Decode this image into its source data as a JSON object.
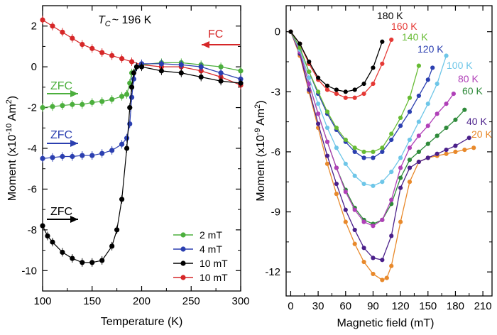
{
  "chart_data": [
    {
      "type": "scatter",
      "title": "T_C ~ 196 K",
      "title_parts": {
        "symbol": "T",
        "subscript": "C",
        "rest": "~ 196 K"
      },
      "xlabel": "Temperature (K)",
      "ylabel": "Moment (x10",
      "ylabel_exp": "-10",
      "ylabel_unit": " Am",
      "ylabel_unit_exp": "2",
      "ylabel_close": ")",
      "xlim": [
        100,
        300
      ],
      "ylim": [
        -11,
        3
      ],
      "xticks": [
        "100",
        "150",
        "200",
        "250",
        "300"
      ],
      "yticks": [
        "2",
        "0",
        "-2",
        "-4",
        "-6",
        "-8",
        "-10"
      ],
      "legend_position": "bottom-right",
      "annotations": [
        {
          "text": "FC",
          "color": "#d62728"
        },
        {
          "text": "ZFC",
          "color": "#4caf3d"
        },
        {
          "text": "ZFC",
          "color": "#2b3fb0"
        },
        {
          "text": "ZFC",
          "color": "#000000"
        }
      ],
      "series": [
        {
          "name": "2 mT",
          "color": "#4caf3d",
          "x": [
            100,
            110,
            120,
            130,
            140,
            150,
            160,
            170,
            180,
            185,
            188,
            190,
            195,
            200,
            220,
            240,
            260,
            280,
            300
          ],
          "y": [
            -2.0,
            -1.95,
            -1.9,
            -1.85,
            -1.85,
            -1.75,
            -1.7,
            -1.6,
            -1.45,
            -1.35,
            -0.8,
            -0.3,
            0.0,
            0.1,
            0.2,
            0.2,
            0.1,
            0.0,
            -0.2
          ]
        },
        {
          "name": "4 mT",
          "color": "#2b3fb0",
          "x": [
            100,
            110,
            120,
            130,
            140,
            150,
            160,
            170,
            180,
            185,
            188,
            190,
            192,
            195,
            200,
            220,
            240,
            260,
            280,
            300
          ],
          "y": [
            -4.5,
            -4.45,
            -4.4,
            -4.4,
            -4.35,
            -4.35,
            -4.25,
            -4.1,
            -3.8,
            -3.5,
            -2.8,
            -1.5,
            -0.6,
            0.0,
            0.15,
            0.15,
            0.1,
            0.0,
            -0.3,
            -0.6
          ]
        },
        {
          "name": "10 mT",
          "color": "#000000",
          "x": [
            100,
            105,
            110,
            120,
            130,
            140,
            150,
            160,
            170,
            175,
            180,
            185,
            188,
            190,
            192,
            195,
            200,
            220,
            240,
            260,
            280,
            300
          ],
          "y": [
            -7.8,
            -8.3,
            -8.6,
            -9.1,
            -9.4,
            -9.6,
            -9.6,
            -9.5,
            -8.8,
            -8.0,
            -6.5,
            -4.0,
            -2.0,
            -1.0,
            -0.3,
            0.0,
            0.0,
            -0.2,
            -0.3,
            -0.5,
            -0.7,
            -0.8
          ]
        },
        {
          "name": "10 mT",
          "color": "#d62728",
          "x": [
            100,
            110,
            120,
            130,
            140,
            150,
            160,
            170,
            180,
            190,
            200,
            220,
            240,
            260,
            280,
            300
          ],
          "y": [
            2.3,
            2.0,
            1.7,
            1.4,
            1.1,
            0.9,
            0.7,
            0.55,
            0.4,
            0.25,
            0.1,
            0.0,
            0.0,
            -0.2,
            -0.5,
            -0.9
          ]
        }
      ]
    },
    {
      "type": "line",
      "xlabel": "Magnetic field (mT)",
      "ylabel": "Moment (x10",
      "ylabel_exp": "-9",
      "ylabel_unit": " Am",
      "ylabel_unit_exp": "2",
      "ylabel_close": ")",
      "xlim": [
        -5,
        220
      ],
      "ylim": [
        -13.2,
        1.3
      ],
      "xticks": [
        "0",
        "30",
        "60",
        "90",
        "120",
        "150",
        "180",
        "210"
      ],
      "yticks": [
        "0",
        "-3",
        "-6",
        "-9",
        "-12"
      ],
      "series": [
        {
          "name": "180 K",
          "color": "#000000",
          "x": [
            0,
            10,
            20,
            30,
            40,
            50,
            60,
            70,
            80,
            90,
            100
          ],
          "y": [
            0,
            -0.6,
            -1.5,
            -2.3,
            -2.7,
            -2.9,
            -3.0,
            -2.9,
            -2.6,
            -1.8,
            -0.5
          ]
        },
        {
          "name": "160 K",
          "color": "#e53935",
          "x": [
            0,
            10,
            20,
            30,
            40,
            50,
            60,
            70,
            80,
            90,
            100,
            110
          ],
          "y": [
            0,
            -0.6,
            -1.6,
            -2.4,
            -2.9,
            -3.1,
            -3.3,
            -3.3,
            -3.1,
            -2.6,
            -1.6,
            -0.4
          ]
        },
        {
          "name": "140 K",
          "color": "#66bb33",
          "x": [
            0,
            10,
            20,
            30,
            40,
            50,
            60,
            70,
            80,
            90,
            100,
            110,
            120,
            130,
            140
          ],
          "y": [
            0,
            -0.8,
            -2.0,
            -3.0,
            -4.0,
            -4.8,
            -5.4,
            -5.8,
            -6.0,
            -6.0,
            -5.8,
            -5.1,
            -4.3,
            -3.3,
            -1.7
          ]
        },
        {
          "name": "120 K",
          "color": "#2b3fb0",
          "x": [
            0,
            10,
            20,
            30,
            40,
            50,
            60,
            70,
            80,
            90,
            100,
            110,
            120,
            130,
            140,
            150,
            155
          ],
          "y": [
            0,
            -0.8,
            -2.0,
            -3.1,
            -4.1,
            -4.9,
            -5.5,
            -6.0,
            -6.3,
            -6.3,
            -6.0,
            -5.4,
            -4.7,
            -4.0,
            -3.2,
            -2.4,
            -1.8
          ]
        },
        {
          "name": "100 K",
          "color": "#6ec6e8",
          "x": [
            0,
            10,
            20,
            30,
            40,
            50,
            60,
            70,
            80,
            90,
            100,
            110,
            120,
            130,
            140,
            150,
            160,
            170
          ],
          "y": [
            0,
            -0.9,
            -2.3,
            -3.6,
            -4.8,
            -5.8,
            -6.6,
            -7.2,
            -7.6,
            -7.7,
            -7.5,
            -7.0,
            -6.3,
            -5.4,
            -4.5,
            -3.6,
            -2.6,
            -1.2
          ]
        },
        {
          "name": "80 K",
          "color": "#b040b8",
          "x": [
            0,
            10,
            20,
            30,
            40,
            50,
            60,
            70,
            80,
            90,
            100,
            110,
            120,
            130,
            140,
            150,
            160,
            170,
            178
          ],
          "y": [
            0,
            -1.0,
            -2.6,
            -4.1,
            -5.5,
            -6.8,
            -8.0,
            -8.9,
            -9.5,
            -9.7,
            -9.4,
            -8.4,
            -6.8,
            -5.8,
            -5.2,
            -4.7,
            -4.1,
            -3.6,
            -3.1
          ]
        },
        {
          "name": "60 K",
          "color": "#2e8a3a",
          "x": [
            0,
            10,
            20,
            30,
            40,
            50,
            60,
            70,
            80,
            90,
            100,
            110,
            120,
            130,
            140,
            150,
            160,
            170,
            180,
            190
          ],
          "y": [
            0,
            -1.0,
            -2.6,
            -4.1,
            -5.5,
            -6.8,
            -7.9,
            -8.8,
            -9.4,
            -9.6,
            -9.4,
            -8.6,
            -7.3,
            -6.4,
            -6.0,
            -5.6,
            -5.2,
            -4.8,
            -4.4,
            -3.9
          ]
        },
        {
          "name": "40 K",
          "color": "#4a1f8a",
          "x": [
            0,
            10,
            20,
            30,
            40,
            50,
            60,
            70,
            80,
            90,
            100,
            110,
            120,
            130,
            140,
            150,
            160,
            170,
            180,
            195
          ],
          "y": [
            0,
            -1.1,
            -2.9,
            -4.6,
            -6.2,
            -7.6,
            -8.9,
            -9.9,
            -10.8,
            -11.3,
            -11.4,
            -10.2,
            -7.8,
            -6.8,
            -6.5,
            -6.3,
            -6.1,
            -5.9,
            -5.7,
            -5.3
          ]
        },
        {
          "name": "20 K",
          "color": "#e8892b",
          "x": [
            0,
            10,
            20,
            30,
            40,
            50,
            60,
            70,
            80,
            90,
            100,
            105,
            110,
            120,
            130,
            140,
            150,
            160,
            170,
            180,
            190,
            200
          ],
          "y": [
            0,
            -1.2,
            -3.0,
            -4.8,
            -6.6,
            -8.1,
            -9.5,
            -10.6,
            -11.5,
            -12.1,
            -12.4,
            -12.3,
            -11.7,
            -9.5,
            -7.5,
            -6.5,
            -6.3,
            -6.2,
            -6.1,
            -6.0,
            -5.9,
            -5.8
          ]
        }
      ]
    }
  ]
}
